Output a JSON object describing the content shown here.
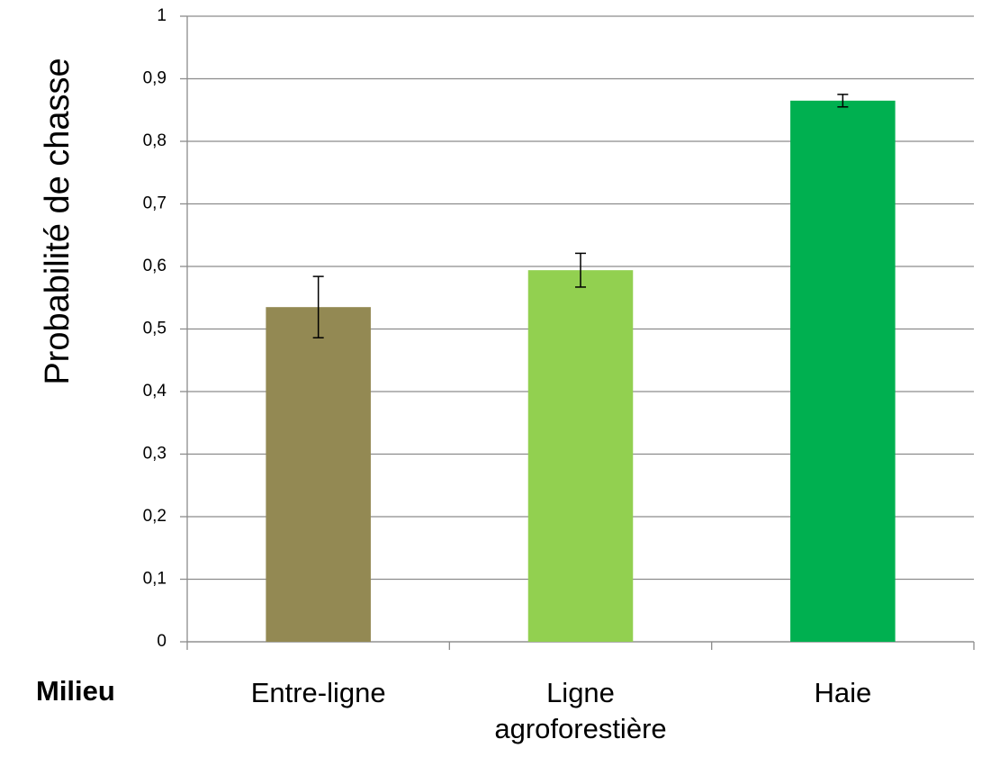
{
  "chart_data": {
    "type": "bar",
    "y_label": "Probabilité de chasse",
    "x_label": "Milieu",
    "categories": [
      "Entre-ligne",
      "Ligne agroforestière",
      "Haie"
    ],
    "values": [
      0.535,
      0.594,
      0.865
    ],
    "errors": [
      0.049,
      0.027,
      0.01
    ],
    "colors": [
      "#938953",
      "#92d050",
      "#00b050"
    ],
    "ylim": [
      0,
      1
    ],
    "yticks": [
      0,
      {
        "value": 0.1,
        "label": "0,1"
      },
      {
        "value": 0.2,
        "label": "0,2"
      },
      {
        "value": 0.3,
        "label": "0,3"
      },
      {
        "value": 0.4,
        "label": "0,4"
      },
      {
        "value": 0.5,
        "label": "0,5"
      },
      {
        "value": 0.6,
        "label": "0,6"
      },
      {
        "value": 0.7,
        "label": "0,7"
      },
      {
        "value": 0.8,
        "label": "0,8"
      },
      {
        "value": 0.9,
        "label": "0,9"
      },
      1
    ],
    "grid": true
  }
}
